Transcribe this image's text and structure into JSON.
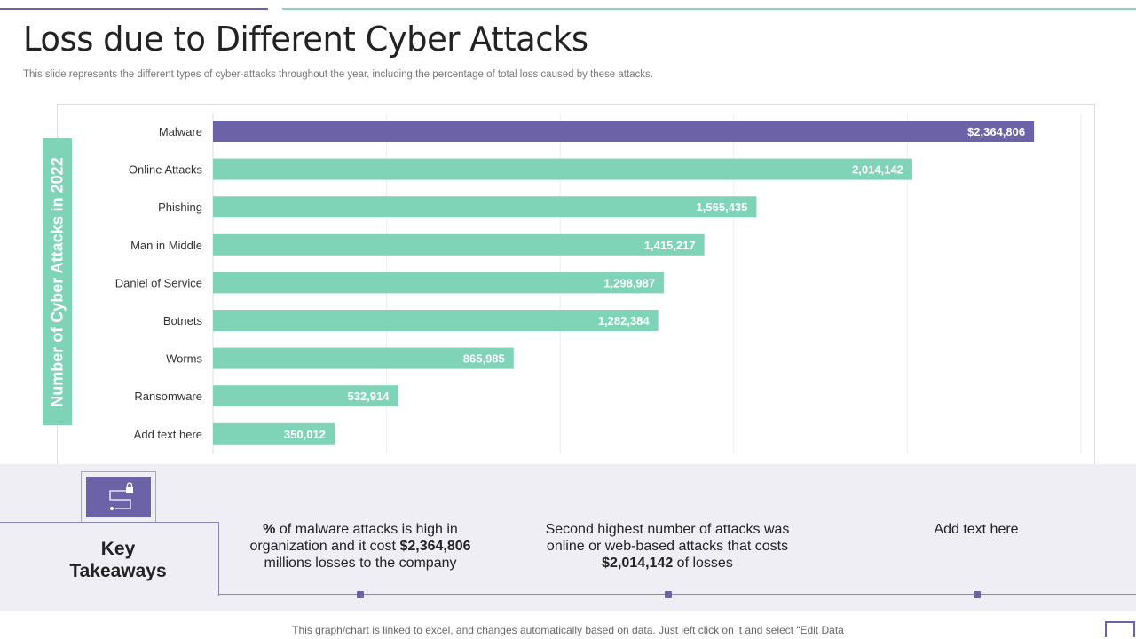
{
  "header": {
    "title": "Loss due to Different Cyber Attacks",
    "subtitle": "This slide represents the different types of cyber-attacks throughout the year, including the percentage of total loss caused by these attacks."
  },
  "chart_data": {
    "type": "bar",
    "orientation": "horizontal",
    "ylabel": "Number of Cyber Attacks in 2022",
    "categories": [
      "Malware",
      "Online Attacks",
      "Phishing",
      "Man in Middle",
      "Daniel of Service",
      "Botnets",
      "Worms",
      "Ransomware",
      "Add text here"
    ],
    "values": [
      2364806,
      2014142,
      1565435,
      1415217,
      1298987,
      1282384,
      865985,
      532914,
      350012
    ],
    "labels": [
      "$2,364,806",
      "2,014,142",
      "1,565,435",
      "1,415,217",
      "1,298,987",
      "1,282,384",
      "865,985",
      "532,914",
      "350,012"
    ],
    "xlim": [
      0,
      2500000
    ],
    "grid": true,
    "colors": {
      "highlight": "#6b62a8",
      "default": "#7fd3b6"
    }
  },
  "takeaways": {
    "title_line1": "Key",
    "title_line2": "Takeaways",
    "t1_a": "%",
    "t1_b": " of malware attacks is high in organization and it cost ",
    "t1_c": "$2,364,806",
    "t1_d": " millions losses to the company",
    "t2_a": "Second highest number of attacks was online or web-based attacks that costs ",
    "t2_b": "$2,014,142",
    "t2_c": " of losses",
    "t3": "Add text here"
  },
  "footer": "This graph/chart is linked to excel, and changes automatically based on data. Just left click on it and select “Edit Data"
}
